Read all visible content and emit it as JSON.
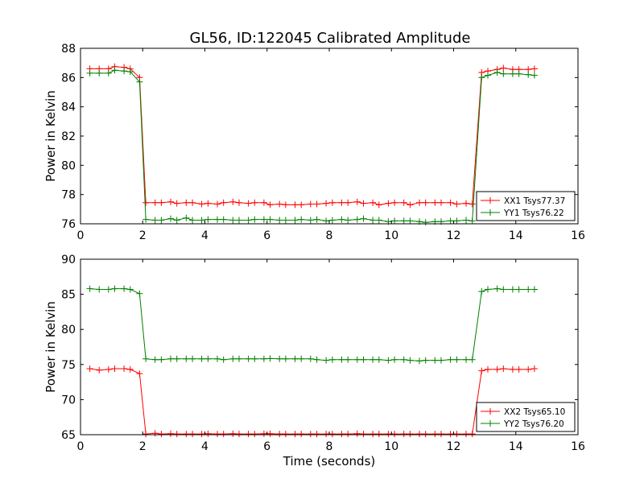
{
  "title": "GL56, ID:122045 Calibrated Amplitude",
  "colors": {
    "xx": "#ff0000",
    "yy": "#008000"
  },
  "chart_data": [
    {
      "type": "line",
      "ylabel": "Power in Kelvin",
      "xlabel": "",
      "xlim": [
        0,
        16
      ],
      "ylim": [
        76,
        88
      ],
      "xticks": [
        "0",
        "2",
        "4",
        "6",
        "8",
        "10",
        "12",
        "14",
        "16"
      ],
      "yticks": [
        "76",
        "78",
        "80",
        "82",
        "84",
        "86",
        "88"
      ],
      "legend_position": "lower-right",
      "marker": "plus",
      "series": [
        {
          "name": "XX1 Tsys77.37",
          "color": "#ff0000",
          "x": [
            0.3,
            0.6,
            0.9,
            1.1,
            1.4,
            1.6,
            1.9,
            2.1,
            2.4,
            2.6,
            2.9,
            3.1,
            3.4,
            3.6,
            3.9,
            4.1,
            4.4,
            4.6,
            4.9,
            5.1,
            5.4,
            5.6,
            5.9,
            6.1,
            6.4,
            6.6,
            6.9,
            7.1,
            7.4,
            7.6,
            7.9,
            8.1,
            8.4,
            8.6,
            8.9,
            9.1,
            9.4,
            9.6,
            9.9,
            10.1,
            10.4,
            10.6,
            10.9,
            11.1,
            11.4,
            11.6,
            11.9,
            12.1,
            12.4,
            12.6,
            12.9,
            13.1,
            13.4,
            13.6,
            13.9,
            14.1,
            14.4,
            14.6
          ],
          "values": [
            86.6,
            86.6,
            86.6,
            86.75,
            86.7,
            86.6,
            86.0,
            77.45,
            77.45,
            77.45,
            77.5,
            77.4,
            77.45,
            77.45,
            77.35,
            77.4,
            77.35,
            77.45,
            77.5,
            77.45,
            77.4,
            77.45,
            77.45,
            77.3,
            77.35,
            77.3,
            77.3,
            77.3,
            77.35,
            77.35,
            77.4,
            77.45,
            77.45,
            77.45,
            77.5,
            77.4,
            77.45,
            77.3,
            77.4,
            77.45,
            77.45,
            77.3,
            77.45,
            77.45,
            77.45,
            77.45,
            77.45,
            77.35,
            77.4,
            77.35,
            86.35,
            86.45,
            86.55,
            86.65,
            86.55,
            86.55,
            86.55,
            86.6
          ]
        },
        {
          "name": "YY1 Tsys76.22",
          "color": "#008000",
          "x": [
            0.3,
            0.6,
            0.9,
            1.1,
            1.4,
            1.6,
            1.9,
            2.1,
            2.4,
            2.6,
            2.9,
            3.1,
            3.4,
            3.6,
            3.9,
            4.1,
            4.4,
            4.6,
            4.9,
            5.1,
            5.4,
            5.6,
            5.9,
            6.1,
            6.4,
            6.6,
            6.9,
            7.1,
            7.4,
            7.6,
            7.9,
            8.1,
            8.4,
            8.6,
            8.9,
            9.1,
            9.4,
            9.6,
            9.9,
            10.1,
            10.4,
            10.6,
            10.9,
            11.1,
            11.4,
            11.6,
            11.9,
            12.1,
            12.4,
            12.6,
            12.9,
            13.1,
            13.4,
            13.6,
            13.9,
            14.1,
            14.4,
            14.6
          ],
          "values": [
            86.3,
            86.3,
            86.3,
            86.5,
            86.45,
            86.4,
            85.7,
            76.3,
            76.25,
            76.25,
            76.35,
            76.25,
            76.4,
            76.25,
            76.25,
            76.3,
            76.3,
            76.3,
            76.25,
            76.25,
            76.25,
            76.3,
            76.3,
            76.3,
            76.25,
            76.25,
            76.25,
            76.3,
            76.25,
            76.3,
            76.2,
            76.25,
            76.3,
            76.25,
            76.3,
            76.35,
            76.25,
            76.25,
            76.15,
            76.2,
            76.2,
            76.2,
            76.15,
            76.1,
            76.15,
            76.15,
            76.2,
            76.2,
            76.25,
            76.2,
            86.0,
            86.15,
            86.35,
            86.25,
            86.25,
            86.25,
            86.2,
            86.15
          ]
        }
      ]
    },
    {
      "type": "line",
      "ylabel": "Power in Kelvin",
      "xlabel": "Time (seconds)",
      "xlim": [
        0,
        16
      ],
      "ylim": [
        65,
        90
      ],
      "xticks": [
        "0",
        "2",
        "4",
        "6",
        "8",
        "10",
        "12",
        "14",
        "16"
      ],
      "yticks": [
        "65",
        "70",
        "75",
        "80",
        "85",
        "90"
      ],
      "legend_position": "lower-right",
      "marker": "plus",
      "series": [
        {
          "name": "XX2 Tsys65.10",
          "color": "#ff0000",
          "x": [
            0.3,
            0.6,
            0.9,
            1.1,
            1.4,
            1.6,
            1.9,
            2.1,
            2.4,
            2.6,
            2.9,
            3.1,
            3.4,
            3.6,
            3.9,
            4.1,
            4.4,
            4.6,
            4.9,
            5.1,
            5.4,
            5.6,
            5.9,
            6.1,
            6.4,
            6.6,
            6.9,
            7.1,
            7.4,
            7.6,
            7.9,
            8.1,
            8.4,
            8.6,
            8.9,
            9.1,
            9.4,
            9.6,
            9.9,
            10.1,
            10.4,
            10.6,
            10.9,
            11.1,
            11.4,
            11.6,
            11.9,
            12.1,
            12.4,
            12.6,
            12.9,
            13.1,
            13.4,
            13.6,
            13.9,
            14.1,
            14.4,
            14.6
          ],
          "values": [
            74.4,
            74.2,
            74.3,
            74.4,
            74.4,
            74.3,
            73.7,
            65.1,
            65.2,
            65.1,
            65.15,
            65.1,
            65.1,
            65.1,
            65.1,
            65.15,
            65.1,
            65.1,
            65.15,
            65.1,
            65.1,
            65.1,
            65.15,
            65.15,
            65.1,
            65.1,
            65.1,
            65.1,
            65.1,
            65.1,
            65.1,
            65.1,
            65.1,
            65.1,
            65.15,
            65.1,
            65.1,
            65.1,
            65.1,
            65.1,
            65.1,
            65.1,
            65.1,
            65.1,
            65.1,
            65.1,
            65.1,
            65.1,
            65.1,
            65.1,
            74.1,
            74.3,
            74.3,
            74.4,
            74.3,
            74.3,
            74.3,
            74.4
          ]
        },
        {
          "name": "YY2 Tsys76.20",
          "color": "#008000",
          "x": [
            0.3,
            0.6,
            0.9,
            1.1,
            1.4,
            1.6,
            1.9,
            2.1,
            2.4,
            2.6,
            2.9,
            3.1,
            3.4,
            3.6,
            3.9,
            4.1,
            4.4,
            4.6,
            4.9,
            5.1,
            5.4,
            5.6,
            5.9,
            6.1,
            6.4,
            6.6,
            6.9,
            7.1,
            7.4,
            7.6,
            7.9,
            8.1,
            8.4,
            8.6,
            8.9,
            9.1,
            9.4,
            9.6,
            9.9,
            10.1,
            10.4,
            10.6,
            10.9,
            11.1,
            11.4,
            11.6,
            11.9,
            12.1,
            12.4,
            12.6,
            12.9,
            13.1,
            13.4,
            13.6,
            13.9,
            14.1,
            14.4,
            14.6
          ],
          "values": [
            85.8,
            85.7,
            85.7,
            85.8,
            85.8,
            85.7,
            85.1,
            75.8,
            75.7,
            75.7,
            75.8,
            75.8,
            75.8,
            75.8,
            75.8,
            75.8,
            75.8,
            75.7,
            75.8,
            75.8,
            75.8,
            75.8,
            75.8,
            75.85,
            75.8,
            75.8,
            75.8,
            75.8,
            75.8,
            75.7,
            75.6,
            75.7,
            75.7,
            75.7,
            75.7,
            75.7,
            75.7,
            75.7,
            75.6,
            75.7,
            75.7,
            75.6,
            75.5,
            75.6,
            75.6,
            75.6,
            75.7,
            75.7,
            75.7,
            75.7,
            85.4,
            85.7,
            85.8,
            85.7,
            85.7,
            85.7,
            85.7,
            85.7
          ]
        }
      ]
    }
  ]
}
